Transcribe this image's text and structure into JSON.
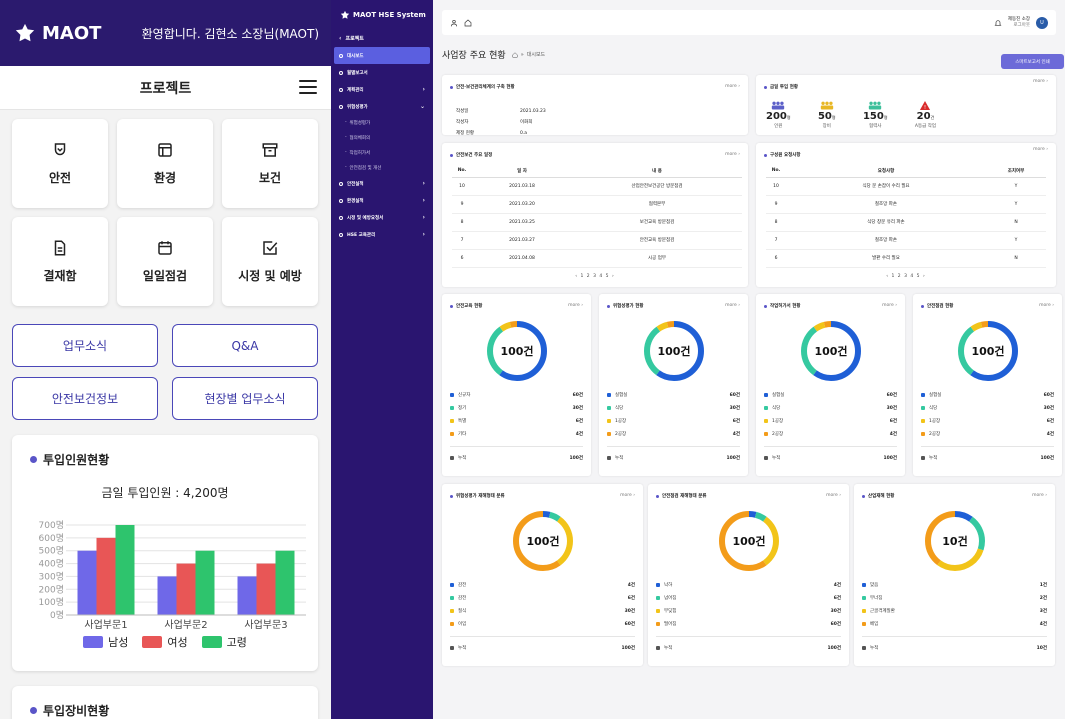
{
  "mobile": {
    "logo_text": "MAOT",
    "welcome": "환영합니다. 김현소 소장님(MAOT)",
    "title": "프로젝트",
    "tiles": [
      {
        "label": "안전",
        "icon": "shield-icon"
      },
      {
        "label": "환경",
        "icon": "layout-icon"
      },
      {
        "label": "보건",
        "icon": "archive-icon"
      },
      {
        "label": "결재함",
        "icon": "document-icon"
      },
      {
        "label": "일일점검",
        "icon": "calendar-icon"
      },
      {
        "label": "시정 및 예방",
        "icon": "checkbox-icon"
      }
    ],
    "buttons": [
      "업무소식",
      "Q&A",
      "안전보건정보",
      "현장별 업무소식"
    ],
    "workforce": {
      "title": "투입인원현황",
      "total": "금일 투입인원 : 4,200명"
    },
    "equipment_title": "투입장비현황"
  },
  "chart_data": {
    "type": "bar",
    "title": "투입인원현황",
    "categories": [
      "사업부문1",
      "사업부문2",
      "사업부문3"
    ],
    "series": [
      {
        "name": "남성",
        "values": [
          500,
          300,
          300
        ],
        "color": "#6f68e8"
      },
      {
        "name": "여성",
        "values": [
          600,
          400,
          400
        ],
        "color": "#e85656"
      },
      {
        "name": "고령",
        "values": [
          700,
          500,
          500
        ],
        "color": "#2ec46d"
      }
    ],
    "yticks": [
      "0명",
      "100명",
      "200명",
      "300명",
      "400명",
      "500명",
      "600명",
      "700명"
    ],
    "ylim": [
      0,
      700
    ],
    "grid": true,
    "legend": "bottom"
  },
  "sidebar": {
    "app_title": "MAOT HSE System",
    "back_label": "프로젝트",
    "items": [
      {
        "label": "대시보드",
        "active": true,
        "chevron": false
      },
      {
        "label": "월별보고서",
        "active": false,
        "chevron": false
      },
      {
        "label": "계획관리",
        "active": false,
        "chevron": true
      },
      {
        "label": "위험성평가",
        "active": false,
        "chevron": true,
        "open": true
      }
    ],
    "subitems": [
      "위험성평가",
      "협의체회의",
      "작업허가서",
      "안전점검 및 개선"
    ],
    "items2": [
      {
        "label": "안전실적",
        "chevron": true
      },
      {
        "label": "환경실적",
        "chevron": true
      },
      {
        "label": "시정 및 예방요청서",
        "chevron": true
      },
      {
        "label": "HSE 교육관리",
        "chevron": true
      }
    ]
  },
  "topbar": {
    "user_name": "제동진 소장",
    "user_sub": "로그아웃",
    "avatar_initial": "U"
  },
  "page": {
    "title": "사업장 주요 현황",
    "breadcrumb": "대시보드",
    "report_button": "스마트보고서 인쇄"
  },
  "cards": {
    "more": "more",
    "info": {
      "title": "안전·보건관리체계의 구축 현황",
      "rows": [
        {
          "k": "작성일",
          "v": "2021.03.23"
        },
        {
          "k": "작성자",
          "v": "이화희"
        },
        {
          "k": "제정 현황",
          "v": "0.a"
        }
      ]
    },
    "stats": {
      "title": "금일 투입 현황",
      "items": [
        {
          "value": "200",
          "unit": "명",
          "label": "인원",
          "color": "#5b5fc8"
        },
        {
          "value": "50",
          "unit": "명",
          "label": "장비",
          "color": "#e8b724"
        },
        {
          "value": "150",
          "unit": "명",
          "label": "협력사",
          "color": "#3bbf9a"
        },
        {
          "value": "20",
          "unit": "건",
          "label": "A등급 작업",
          "color": "#d92b2b"
        }
      ]
    },
    "schedule": {
      "title": "안전보건 주요 일정",
      "headers": [
        "No.",
        "일 자",
        "내 용"
      ],
      "rows": [
        [
          "10",
          "2021.03.18",
          "산업안전보건공단 방문점검"
        ],
        [
          "9",
          "2021.03.20",
          "협력본부"
        ],
        [
          "8",
          "2021.03.25",
          "보건교육 방문점검"
        ],
        [
          "7",
          "2021.03.27",
          "안전교육 방문점검"
        ],
        [
          "6",
          "2021.04.08",
          "시공 업무"
        ]
      ],
      "pager": "‹ 1 2 3 4 5 ›"
    },
    "requests": {
      "title": "구성원 요청사항",
      "headers": [
        "No.",
        "요청사항",
        "조치여부"
      ],
      "rows": [
        [
          "10",
          "식당 문 손잡이 수리 필요",
          "Y"
        ],
        [
          "9",
          "철조망 파손",
          "Y"
        ],
        [
          "8",
          "식당 창문 유리 파손",
          "N"
        ],
        [
          "7",
          "철조망 파손",
          "Y"
        ],
        [
          "6",
          "발판 수리 필요",
          "N"
        ]
      ],
      "pager": "‹ 1 2 3 4 5 ›"
    },
    "donuts_row1": [
      {
        "title": "안전교육 현황",
        "center": "100건",
        "items": [
          {
            "label": "신규자",
            "value": "60건",
            "color": "#1f5fd6"
          },
          {
            "label": "정기",
            "value": "30건",
            "color": "#35c9a0"
          },
          {
            "label": "특별",
            "value": "6건",
            "color": "#f2c419"
          },
          {
            "label": "기타",
            "value": "4건",
            "color": "#f39c1a"
          }
        ],
        "fractions": [
          0.6,
          0.3,
          0.06,
          0.04
        ],
        "total_label": "누적",
        "total": "100건"
      },
      {
        "title": "위험성평가 현황",
        "center": "100건",
        "items": [
          {
            "label": "실험실",
            "value": "60건",
            "color": "#1f5fd6"
          },
          {
            "label": "식당",
            "value": "30건",
            "color": "#35c9a0"
          },
          {
            "label": "1공장",
            "value": "6건",
            "color": "#f2c419"
          },
          {
            "label": "2공장",
            "value": "4건",
            "color": "#f39c1a"
          }
        ],
        "fractions": [
          0.6,
          0.3,
          0.06,
          0.04
        ],
        "total_label": "누적",
        "total": "100건"
      },
      {
        "title": "작업허가서 현황",
        "center": "100건",
        "items": [
          {
            "label": "실험실",
            "value": "60건",
            "color": "#1f5fd6"
          },
          {
            "label": "식당",
            "value": "30건",
            "color": "#35c9a0"
          },
          {
            "label": "1공장",
            "value": "6건",
            "color": "#f2c419"
          },
          {
            "label": "2공장",
            "value": "4건",
            "color": "#f39c1a"
          }
        ],
        "fractions": [
          0.6,
          0.3,
          0.06,
          0.04
        ],
        "total_label": "누적",
        "total": "100건"
      },
      {
        "title": "안전점검 현황",
        "center": "100건",
        "items": [
          {
            "label": "실험실",
            "value": "60건",
            "color": "#1f5fd6"
          },
          {
            "label": "식당",
            "value": "30건",
            "color": "#35c9a0"
          },
          {
            "label": "1공장",
            "value": "6건",
            "color": "#f2c419"
          },
          {
            "label": "2공장",
            "value": "4건",
            "color": "#f39c1a"
          }
        ],
        "fractions": [
          0.6,
          0.3,
          0.06,
          0.04
        ],
        "total_label": "누적",
        "total": "100건"
      }
    ],
    "donuts_row2": [
      {
        "title": "위험성평가 재해형태 분류",
        "center": "100건",
        "items": [
          {
            "label": "감전",
            "value": "4건",
            "color": "#1f5fd6"
          },
          {
            "label": "감전",
            "value": "6건",
            "color": "#35c9a0"
          },
          {
            "label": "질식",
            "value": "30건",
            "color": "#f2c419"
          },
          {
            "label": "이임",
            "value": "60건",
            "color": "#f39c1a"
          }
        ],
        "fractions": [
          0.04,
          0.06,
          0.3,
          0.6
        ],
        "total_label": "누적",
        "total": "100건"
      },
      {
        "title": "안전점검 재해형태 분류",
        "center": "100건",
        "items": [
          {
            "label": "낙하",
            "value": "4건",
            "color": "#1f5fd6"
          },
          {
            "label": "넘어짐",
            "value": "6건",
            "color": "#35c9a0"
          },
          {
            "label": "부딪힘",
            "value": "30건",
            "color": "#f2c419"
          },
          {
            "label": "떨어짐",
            "value": "60건",
            "color": "#f39c1a"
          }
        ],
        "fractions": [
          0.04,
          0.06,
          0.3,
          0.6
        ],
        "total_label": "누적",
        "total": "100건"
      },
      {
        "title": "산업재해 현황",
        "center": "10건",
        "items": [
          {
            "label": "맞음",
            "value": "1건",
            "color": "#1f5fd6"
          },
          {
            "label": "무너짐",
            "value": "2건",
            "color": "#35c9a0"
          },
          {
            "label": "근골격계질환",
            "value": "3건",
            "color": "#f2c419"
          },
          {
            "label": "베임",
            "value": "4건",
            "color": "#f39c1a"
          }
        ],
        "fractions": [
          0.1,
          0.2,
          0.3,
          0.4
        ],
        "total_label": "누적",
        "total": "10건"
      }
    ]
  }
}
